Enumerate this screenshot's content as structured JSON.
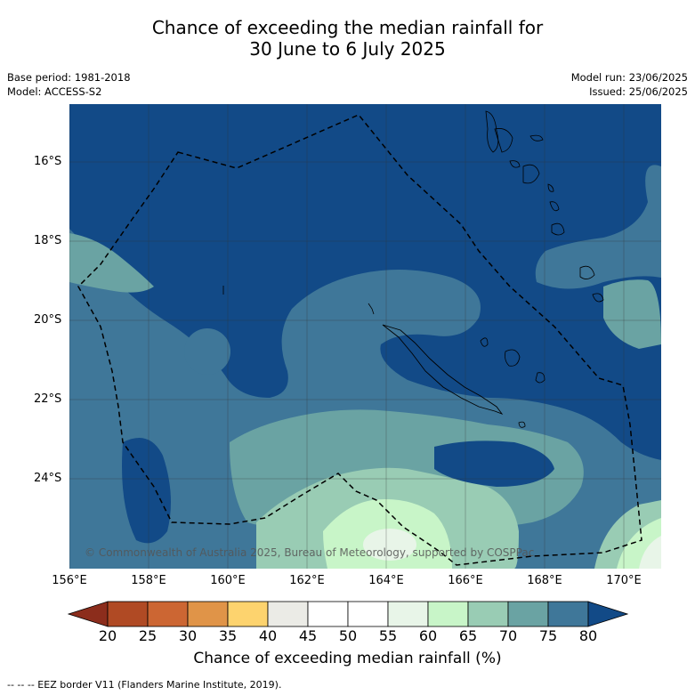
{
  "title_line1": "Chance of exceeding the median rainfall for",
  "title_line2": "30 June to 6 July 2025",
  "base_period": "Base period: 1981-2018",
  "model": "Model: ACCESS-S2",
  "model_run": "Model run: 23/06/2025",
  "issued": "Issued: 25/06/2025",
  "copyright": "© Commonwealth of Australia 2025, Bureau of Meteorology, supported by COSPPac",
  "lat_labels": [
    "16°S",
    "18°S",
    "20°S",
    "22°S",
    "24°S"
  ],
  "lon_labels": [
    "156°E",
    "158°E",
    "160°E",
    "162°E",
    "164°E",
    "166°E",
    "168°E",
    "170°E"
  ],
  "colorbar": {
    "ticks": [
      "20",
      "25",
      "30",
      "35",
      "40",
      "45",
      "50",
      "55",
      "60",
      "65",
      "70",
      "75",
      "80"
    ],
    "colors": [
      "#8c2d1c",
      "#b04a24",
      "#cc6633",
      "#e09448",
      "#fdd36e",
      "#ebebe6",
      "#ffffff",
      "#ffffff",
      "#e8f5e8",
      "#c8f5c8",
      "#99ccb4",
      "#6aa3a3",
      "#3f7799",
      "#124a87"
    ],
    "title": "Chance of exceeding median rainfall (%)"
  },
  "legend_line": "-- -- -- EEZ border V11 (Flanders Marine Institute, 2019).",
  "colors": {
    "c80": "#124a87",
    "c75": "#3f7799",
    "c70": "#6aa3a3",
    "c65": "#99ccb4",
    "c60": "#c8f5c8",
    "c55": "#e8f5e8"
  }
}
